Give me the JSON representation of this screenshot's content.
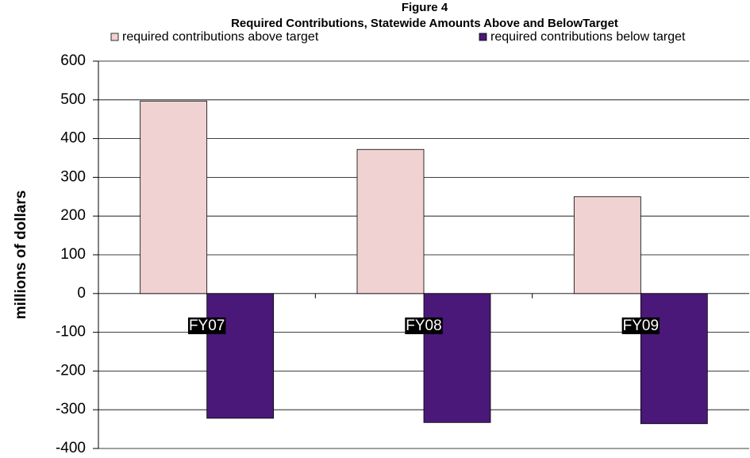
{
  "chart_data": {
    "type": "bar",
    "title": "Figure 4",
    "subtitle": "Required Contributions, Statewide Amounts Above and BelowTarget",
    "y_label": "millions of dollars",
    "categories": [
      "FY07",
      "FY08",
      "FY09"
    ],
    "series": [
      {
        "name": "required contributions above target",
        "color": "#f0d2d2",
        "values": [
          497,
          372,
          250
        ]
      },
      {
        "name": "required contributions below target",
        "color": "#4a1878",
        "values": [
          -322,
          -333,
          -336
        ]
      }
    ],
    "ylim": [
      -400,
      600
    ],
    "yticks": [
      -400,
      -300,
      -200,
      -100,
      0,
      100,
      200,
      300,
      400,
      500,
      600
    ],
    "grid": true,
    "legend": "top"
  }
}
